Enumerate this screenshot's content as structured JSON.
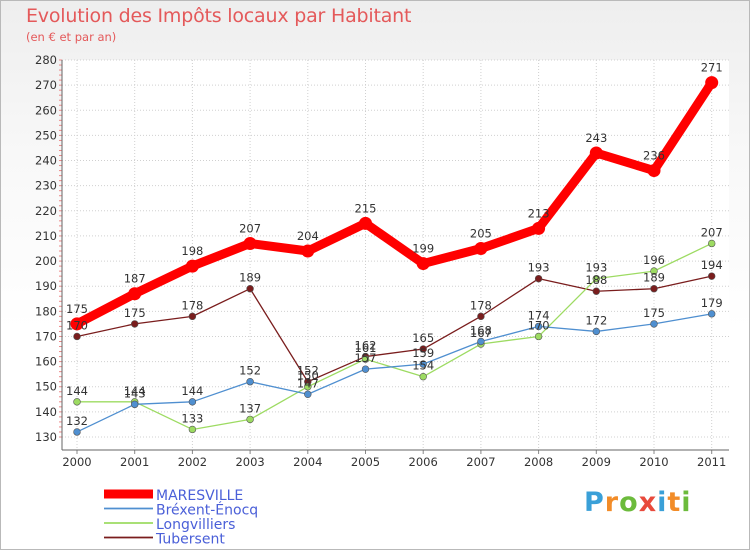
{
  "header": {
    "title": "Evolution des Impôts locaux par Habitant",
    "subtitle": "(en € et par an)"
  },
  "brand": {
    "letters": [
      "P",
      "r",
      "o",
      "x",
      "i",
      "t",
      "i"
    ],
    "colors": [
      "#3aa0d8",
      "#f28c28",
      "#6cbb3c",
      "#e84a3c",
      "#3aa0d8",
      "#f28c28",
      "#6cbb3c"
    ]
  },
  "chart_data": {
    "type": "line",
    "title": "Evolution des Impôts locaux par Habitant",
    "subtitle": "(en € et par an)",
    "xlabel": "",
    "ylabel": "",
    "x": [
      "2000",
      "2001",
      "2002",
      "2003",
      "2004",
      "2005",
      "2006",
      "2007",
      "2008",
      "2009",
      "2010",
      "2011"
    ],
    "ylim": [
      130,
      280
    ],
    "yticks": [
      130,
      140,
      150,
      160,
      170,
      180,
      190,
      200,
      210,
      220,
      230,
      240,
      250,
      260,
      270,
      280
    ],
    "grid": true,
    "legend_position": "bottom-left",
    "series": [
      {
        "name": "MARESVILLE",
        "color": "#ff0000",
        "values": [
          175,
          187,
          198,
          207,
          204,
          215,
          199,
          205,
          213,
          243,
          236,
          271
        ],
        "labels": [
          "175",
          "187",
          "198",
          "207",
          "204",
          "215",
          "199",
          "205",
          "213",
          "243",
          "236",
          "271"
        ]
      },
      {
        "name": "Bréxent-Énocq",
        "color": "#4f8fd0",
        "values": [
          132,
          143,
          144,
          152,
          147,
          157,
          159,
          168,
          174,
          172,
          175,
          179
        ],
        "labels": [
          "132",
          "143",
          "144",
          "152",
          "147",
          "157",
          "159",
          "168",
          "174",
          "172",
          "175",
          "179"
        ]
      },
      {
        "name": "Longvilliers",
        "color": "#9ddb62",
        "values": [
          144,
          144,
          133,
          137,
          150,
          161,
          154,
          167,
          170,
          193,
          196,
          207
        ],
        "labels": [
          "144",
          "144",
          "133",
          "137",
          "150",
          "161",
          "154",
          "167",
          "170",
          "193",
          "196",
          "207"
        ]
      },
      {
        "name": "Tubersent",
        "color": "#7a1d1d",
        "values": [
          170,
          175,
          178,
          189,
          152,
          162,
          165,
          178,
          193,
          188,
          189,
          194
        ],
        "labels": [
          "170",
          "175",
          "178",
          "189",
          "152",
          "162",
          "165",
          "178",
          "193",
          "188",
          "189",
          "194"
        ]
      }
    ]
  }
}
